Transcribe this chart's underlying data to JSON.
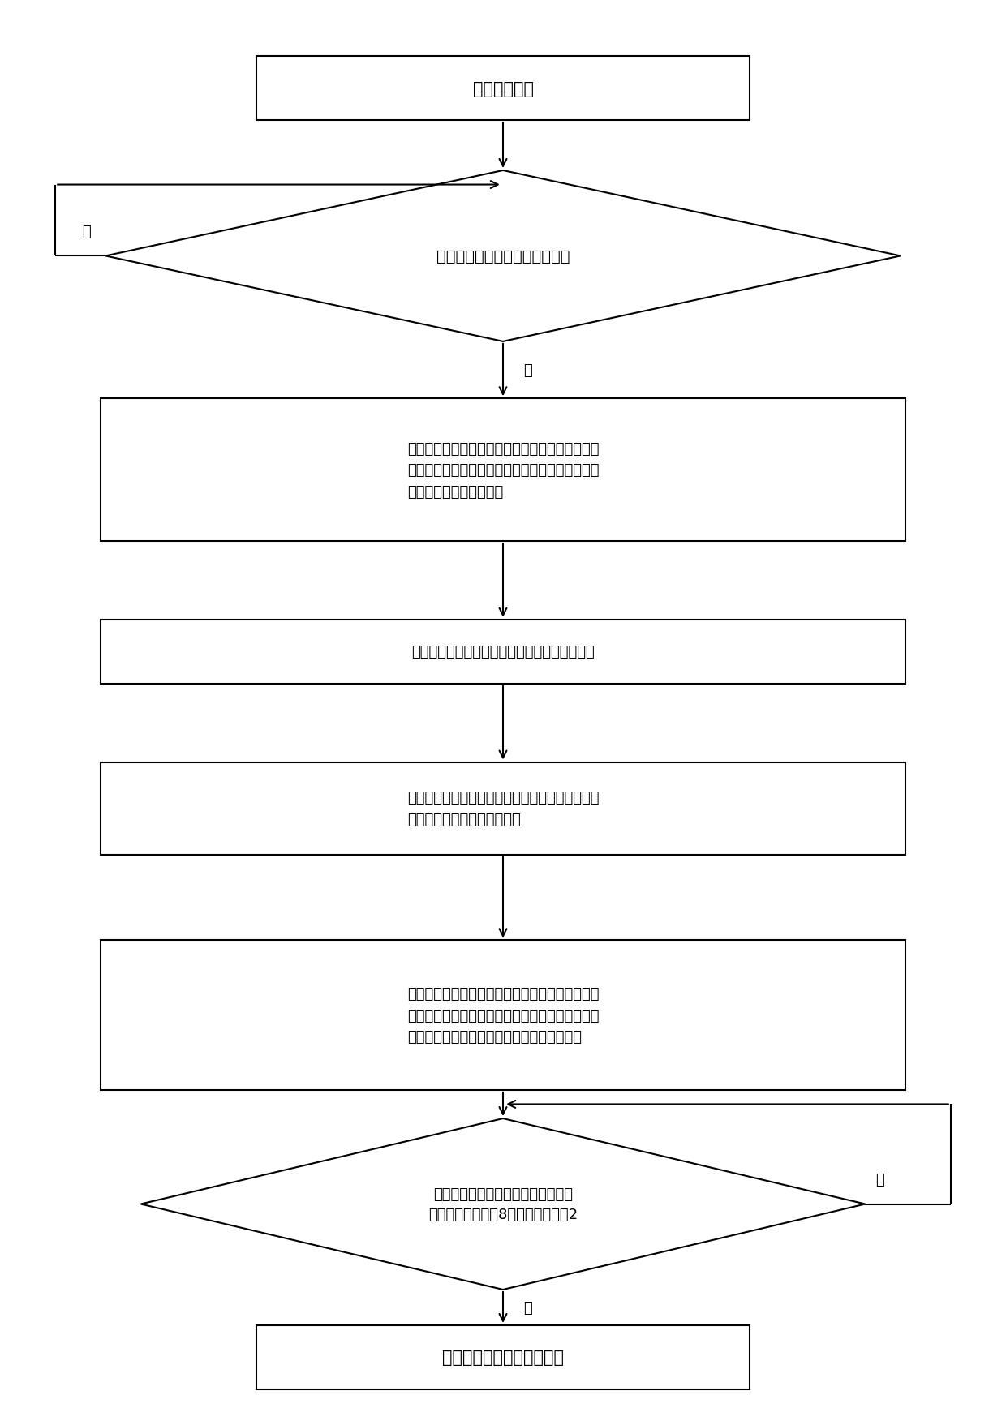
{
  "bg_color": "#ffffff",
  "box_color": "#ffffff",
  "box_edge_color": "#000000",
  "line_color": "#000000",
  "fig_width": 12.4,
  "fig_height": 17.58,
  "lw": 1.5,
  "box1_label": "获取回波数据",
  "diamond1_label": "判断回波数据是否存在窄带干扰",
  "box2_label": "根据存在窄带干扰的回波数据的列向量获得混合信\n号时频谱图，并对混合信号时频谱图进行奇异值分\n解，获得待分离信号矩阵",
  "box3_label": "对待分离信号矩阵进行分离，获得干扰信号矩阵",
  "box4_label": "根据最小二乘准则，利用干扰信号矩阵中的干扰信\n号分量重构干扰信号时频谱图",
  "box5_label": "从混合信号时频谱图中剔除干扰信号得到有用信号\n时频谱图，并对有用信号时频谱图进行逆短时傅里\n叶变换，得到剔除干扰后的回波数据的列向量",
  "diamond2_label": "判断是否遍历完所有回波数据的列向\n量，若是执行步骤8，否则执行步骤2",
  "box6_label": "获取剔除干扰后的回波数据",
  "no_label": "否",
  "yes_label": "是"
}
